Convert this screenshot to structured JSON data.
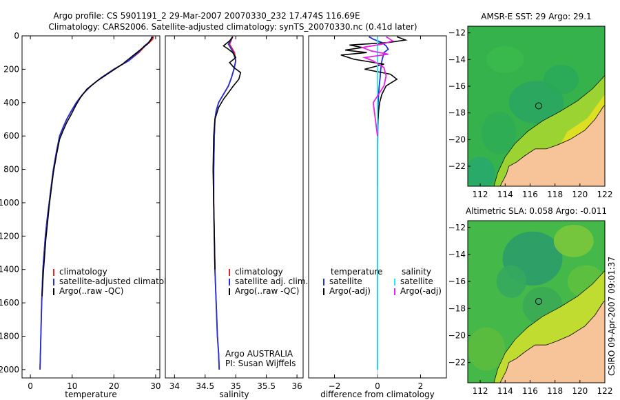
{
  "header": {
    "line1": "Argo profile: CS 5901191_2 29-Mar-2007 20070330_232 17.474S 116.69E",
    "line2": "Climatology: CARS2006. Satellite-adjusted climatology: synTS_20070330.nc (0.41d later)"
  },
  "side_stamp": "CSIRO 09-Apr-2007 09:01:37",
  "float_info": {
    "line1": "Argo AUSTRALIA",
    "line2": "PI: Susan Wijffels"
  },
  "colors": {
    "red": "#e8242a",
    "blue": "#2030d8",
    "black": "#000000",
    "cyan": "#20e8f0",
    "magenta": "#e820e8",
    "land": "#f7c398",
    "map_green": "#2ea84a"
  },
  "chart_data": [
    {
      "id": "temperature",
      "type": "line",
      "xlabel": "temperature",
      "ylabel": "",
      "xlim": [
        -2,
        31
      ],
      "ylim": [
        2050,
        0
      ],
      "xticks": [
        0,
        10,
        20,
        30
      ],
      "yticks": [
        0,
        200,
        400,
        600,
        800,
        1000,
        1200,
        1400,
        1600,
        1800,
        2000
      ],
      "legend": [
        "climatology",
        "satellite-adjusted climatology",
        "Argo(..raw -QC)"
      ],
      "series": [
        {
          "name": "climatology",
          "color": "red",
          "x": [
            29.5,
            29.3,
            28.5,
            27.5,
            26,
            23.5,
            20,
            17,
            14.5,
            12.5,
            11,
            9.8,
            8.7,
            7.8,
            7,
            6.2,
            5.5,
            5,
            4.5,
            4,
            3.6,
            3.3,
            3,
            2.7,
            2.5,
            2.3
          ],
          "y": [
            5,
            20,
            40,
            60,
            100,
            150,
            200,
            250,
            300,
            350,
            400,
            450,
            500,
            550,
            600,
            700,
            800,
            900,
            1000,
            1100,
            1200,
            1300,
            1400,
            1600,
            1800,
            2000
          ]
        },
        {
          "name": "satellite-adjusted climatology",
          "color": "blue",
          "x": [
            29.1,
            28.9,
            28.3,
            27.3,
            25.8,
            23.5,
            20,
            17,
            14.5,
            12.5,
            11,
            9.8,
            8.7,
            7.8,
            7,
            6.2,
            5.5,
            5,
            4.5,
            4,
            3.6,
            3.3,
            3,
            2.7,
            2.5,
            2.3
          ],
          "y": [
            5,
            20,
            40,
            60,
            100,
            150,
            200,
            250,
            300,
            350,
            400,
            450,
            500,
            550,
            600,
            700,
            800,
            900,
            1000,
            1100,
            1200,
            1300,
            1400,
            1600,
            1800,
            2000
          ]
        },
        {
          "name": "Argo(..raw -QC)",
          "color": "black",
          "x": [
            29.3,
            28.8,
            28,
            26.5,
            24.5,
            22,
            19,
            16,
            13.5,
            12,
            10.8,
            9.8,
            8.7,
            7.8,
            7,
            6.2,
            5.5,
            5,
            4.5,
            4.1,
            3.7,
            3.4,
            3.1,
            2.8
          ],
          "y": [
            5,
            25,
            50,
            80,
            120,
            170,
            220,
            270,
            320,
            370,
            420,
            470,
            520,
            570,
            620,
            720,
            820,
            920,
            1020,
            1120,
            1220,
            1320,
            1420,
            1560
          ]
        }
      ]
    },
    {
      "id": "salinity",
      "type": "line",
      "xlabel": "salinity",
      "ylabel": "",
      "xlim": [
        33.85,
        36.1
      ],
      "ylim": [
        2050,
        0
      ],
      "xticks": [
        34,
        34.5,
        35,
        35.5,
        36
      ],
      "xticklabels": [
        "34",
        "34.5",
        "35",
        "35.5",
        "36"
      ],
      "legend": [
        "climatology",
        "satellite adj. clim.",
        "Argo(..raw -QC)"
      ],
      "series": [
        {
          "name": "climatology",
          "color": "red",
          "x": [
            34.95,
            34.9,
            34.98,
            35,
            34.97,
            34.93,
            34.88,
            34.8,
            34.72,
            34.68,
            34.66,
            34.65,
            34.64,
            34.64,
            34.65,
            34.66,
            34.68,
            34.7,
            34.72,
            34.73
          ],
          "y": [
            5,
            50,
            100,
            150,
            200,
            250,
            300,
            350,
            400,
            450,
            500,
            600,
            800,
            1000,
            1200,
            1400,
            1600,
            1800,
            1900,
            2000
          ]
        },
        {
          "name": "satellite adj. clim.",
          "color": "blue",
          "x": [
            34.95,
            34.88,
            34.96,
            35,
            34.97,
            34.93,
            34.88,
            34.8,
            34.72,
            34.68,
            34.66,
            34.65,
            34.64,
            34.64,
            34.65,
            34.66,
            34.68,
            34.7,
            34.72,
            34.73
          ],
          "y": [
            5,
            50,
            100,
            150,
            200,
            250,
            300,
            350,
            400,
            450,
            500,
            600,
            800,
            1000,
            1200,
            1400,
            1600,
            1800,
            1900,
            2000
          ]
        },
        {
          "name": "Argo(..raw -QC)",
          "color": "black",
          "x": [
            34.95,
            34.9,
            34.8,
            34.88,
            34.95,
            35,
            34.9,
            34.97,
            35.08,
            35.05,
            34.96,
            34.88,
            34.8,
            34.72,
            34.66,
            34.64,
            34.63,
            34.64,
            34.65,
            34.66
          ],
          "y": [
            5,
            30,
            60,
            80,
            100,
            130,
            160,
            190,
            220,
            260,
            300,
            340,
            380,
            430,
            500,
            600,
            800,
            1000,
            1200,
            1400
          ]
        }
      ]
    },
    {
      "id": "difference",
      "type": "line",
      "xlabel": "difference from climatology",
      "ylabel": "",
      "xlim": [
        -3.2,
        3.2
      ],
      "ylim": [
        2050,
        0
      ],
      "xticks": [
        -2,
        0,
        2
      ],
      "legend": [
        "temperature",
        "satellite",
        "Argo(-adj)",
        "salinity",
        "satellite",
        "Argo(-adj)"
      ],
      "series": [
        {
          "name": "temperature satellite",
          "color": "blue",
          "x": [
            -0.4,
            -0.2,
            0.2,
            0.4,
            0.5,
            0.3,
            0.2,
            0.15,
            0.12,
            0.08,
            0.05,
            0.03,
            0.02,
            0.01,
            0,
            0,
            0,
            0,
            0,
            0
          ],
          "y": [
            5,
            20,
            40,
            60,
            80,
            100,
            150,
            200,
            250,
            300,
            350,
            400,
            500,
            600,
            800,
            1000,
            1200,
            1400,
            1800,
            2000
          ]
        },
        {
          "name": "temperature Argo(-adj)",
          "color": "black",
          "x": [
            0.9,
            1.3,
            0.5,
            -1.3,
            -0.7,
            -1.5,
            -0.5,
            -1.7,
            -1.1,
            0.3,
            -0.6,
            0.6,
            0.9,
            0.4,
            0.2,
            0.1,
            0.05,
            0,
            0,
            0
          ],
          "y": [
            5,
            25,
            40,
            55,
            70,
            85,
            100,
            115,
            140,
            170,
            200,
            230,
            260,
            300,
            350,
            400,
            450,
            550,
            700,
            900
          ]
        },
        {
          "name": "salinity satellite",
          "color": "cyan",
          "x": [
            0,
            0,
            0,
            0,
            0,
            0,
            0,
            0,
            0,
            0
          ],
          "y": [
            5,
            100,
            300,
            500,
            800,
            1000,
            1300,
            1600,
            1900,
            2000
          ]
        },
        {
          "name": "salinity Argo(-adj)",
          "color": "magenta",
          "x": [
            0.4,
            0.7,
            0.2,
            -0.7,
            -0.3,
            0.5,
            -0.6,
            -0.2,
            0.3,
            0.4,
            0.3,
            -0.2,
            -0.1,
            0
          ],
          "y": [
            5,
            30,
            50,
            70,
            90,
            110,
            130,
            150,
            190,
            240,
            300,
            400,
            500,
            600
          ]
        }
      ]
    },
    {
      "id": "sst_map",
      "type": "heatmap",
      "title": "AMSR-E SST: 29 Argo: 29.1",
      "xlim": [
        111,
        122
      ],
      "ylim": [
        -23.5,
        -11.5
      ],
      "xticks": [
        112,
        114,
        116,
        118,
        120,
        122
      ],
      "yticks": [
        -12,
        -14,
        -16,
        -18,
        -20,
        -22
      ],
      "marker": {
        "lon": 116.69,
        "lat": -17.474
      }
    },
    {
      "id": "sla_map",
      "type": "heatmap",
      "title": "Altimetric SLA: 0.058 Argo: -0.011",
      "xlim": [
        111,
        122
      ],
      "ylim": [
        -23.5,
        -11.5
      ],
      "xticks": [
        112,
        114,
        116,
        118,
        120,
        122
      ],
      "yticks": [
        -12,
        -14,
        -16,
        -18,
        -20,
        -22
      ],
      "marker": {
        "lon": 116.69,
        "lat": -17.474
      }
    }
  ]
}
